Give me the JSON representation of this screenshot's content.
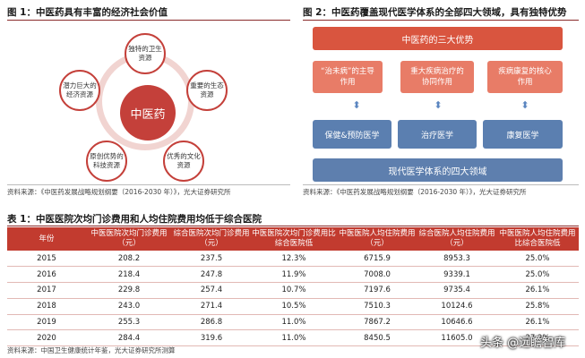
{
  "figure1": {
    "title": "图 1：中医药具有丰富的经济社会价值",
    "center": "中医药",
    "nodes": [
      "独特的卫生资源",
      "重要的生态资源",
      "优秀的文化资源",
      "原创优势的科技资源",
      "潜力巨大的经济资源"
    ],
    "source": "资料来源：《中医药发展战略规划纲要（2016-2030 年）》，光大证券研究所"
  },
  "figure2": {
    "title": "图 2：中医药覆盖现代医学体系的全部四大领域，具有独特优势",
    "top_box": "中医药的三大优势",
    "advantages": [
      "“治未病”的主导作用",
      "重大疾病治疗的协同作用",
      "疾病康复的核心作用"
    ],
    "fields": [
      "保健&预防医学",
      "治疗医学",
      "康复医学"
    ],
    "bottom_box": "现代医学体系的四大领域",
    "arrow_glyph": "⬍",
    "source": "资料来源：《中医药发展战略规划纲要（2016-2030 年）》，光大证券研究所"
  },
  "table1": {
    "title": "表 1：中医医院次均门诊费用和人均住院费用均低于综合医院",
    "headers": [
      "年份",
      "中医医院次均门诊费用（元）",
      "综合医院次均门诊费用（元）",
      "中医医院次均门诊费用比综合医院低",
      "中医医院人均住院费用（元）",
      "综合医院人均住院费用（元）",
      "中医医院人均住院费用比综合医院低"
    ],
    "rows": [
      [
        "2015",
        "208.2",
        "237.5",
        "12.3%",
        "6715.9",
        "8953.3",
        "25.0%"
      ],
      [
        "2016",
        "218.4",
        "247.8",
        "11.9%",
        "7008.0",
        "9339.1",
        "25.0%"
      ],
      [
        "2017",
        "229.8",
        "257.4",
        "10.7%",
        "7197.6",
        "9735.4",
        "26.1%"
      ],
      [
        "2018",
        "243.0",
        "271.4",
        "10.5%",
        "7510.3",
        "10124.6",
        "25.8%"
      ],
      [
        "2019",
        "255.3",
        "286.8",
        "11.0%",
        "7867.2",
        "10646.6",
        "26.1%"
      ],
      [
        "2020",
        "284.4",
        "319.6",
        "11.0%",
        "8450.5",
        "11605.0",
        "27.2%"
      ]
    ],
    "source": "资料来源：中国卫生健康统计年鉴，光大证券研究所测算"
  },
  "watermark": "头条 @远瞻智库",
  "colors": {
    "accent_red": "#c23b2f",
    "light_red": "#e87c67",
    "blue": "#5b7fb0"
  }
}
